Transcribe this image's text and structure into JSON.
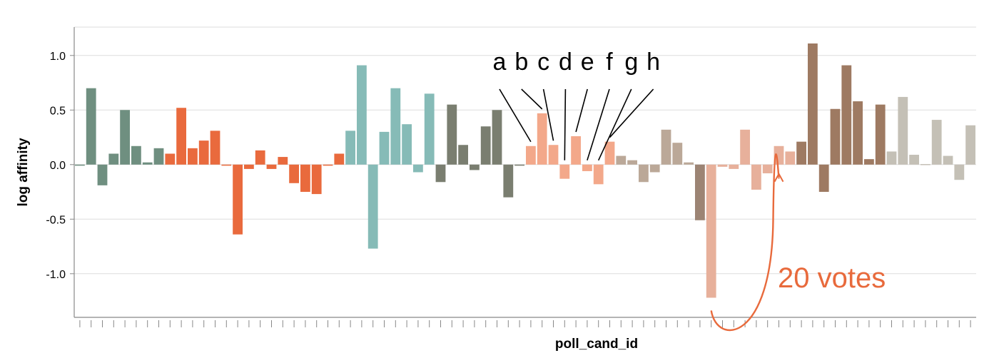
{
  "chart_data": {
    "type": "bar",
    "xlabel": "poll_cand_id",
    "ylabel": "log affinity",
    "ylim": [
      -1.4,
      1.26
    ],
    "yticks": [
      1.0,
      0.5,
      0.0,
      -0.5,
      -1.0
    ],
    "ytick_labels": [
      "1.0",
      "0.5",
      "0.0",
      "-0.5",
      "-1.0"
    ],
    "x_tick_labels_shown": false,
    "grid": true,
    "bars": [
      {
        "value": -0.01,
        "color": "#6f8f80"
      },
      {
        "value": 0.7,
        "color": "#6f8f80"
      },
      {
        "value": -0.19,
        "color": "#6f8f80"
      },
      {
        "value": 0.1,
        "color": "#6f8f80"
      },
      {
        "value": 0.5,
        "color": "#6f8f80"
      },
      {
        "value": 0.17,
        "color": "#6f8f80"
      },
      {
        "value": 0.02,
        "color": "#6f8f80"
      },
      {
        "value": 0.15,
        "color": "#6f8f80"
      },
      {
        "value": 0.1,
        "color": "#e96a3d"
      },
      {
        "value": 0.52,
        "color": "#e96a3d"
      },
      {
        "value": 0.15,
        "color": "#e96a3d"
      },
      {
        "value": 0.22,
        "color": "#e96a3d"
      },
      {
        "value": 0.31,
        "color": "#e96a3d"
      },
      {
        "value": -0.01,
        "color": "#e96a3d"
      },
      {
        "value": -0.64,
        "color": "#e96a3d"
      },
      {
        "value": -0.04,
        "color": "#e96a3d"
      },
      {
        "value": 0.13,
        "color": "#e96a3d"
      },
      {
        "value": -0.04,
        "color": "#e96a3d"
      },
      {
        "value": 0.07,
        "color": "#e96a3d"
      },
      {
        "value": -0.17,
        "color": "#e96a3d"
      },
      {
        "value": -0.25,
        "color": "#e96a3d"
      },
      {
        "value": -0.27,
        "color": "#e96a3d"
      },
      {
        "value": -0.01,
        "color": "#e96a3d"
      },
      {
        "value": 0.1,
        "color": "#e96a3d"
      },
      {
        "value": 0.31,
        "color": "#86bbb7"
      },
      {
        "value": 0.91,
        "color": "#86bbb7"
      },
      {
        "value": -0.77,
        "color": "#86bbb7"
      },
      {
        "value": 0.3,
        "color": "#86bbb7"
      },
      {
        "value": 0.7,
        "color": "#86bbb7"
      },
      {
        "value": 0.37,
        "color": "#86bbb7"
      },
      {
        "value": -0.07,
        "color": "#86bbb7"
      },
      {
        "value": 0.65,
        "color": "#86bbb7"
      },
      {
        "value": -0.16,
        "color": "#7a7e70"
      },
      {
        "value": 0.55,
        "color": "#7a7e70"
      },
      {
        "value": 0.18,
        "color": "#7a7e70"
      },
      {
        "value": -0.05,
        "color": "#7a7e70"
      },
      {
        "value": 0.35,
        "color": "#7a7e70"
      },
      {
        "value": 0.5,
        "color": "#7a7e70"
      },
      {
        "value": -0.3,
        "color": "#7a7e70"
      },
      {
        "value": -0.01,
        "color": "#7a7e70"
      },
      {
        "value": 0.17,
        "color": "#f3a88a"
      },
      {
        "value": 0.47,
        "color": "#f3a88a"
      },
      {
        "value": 0.18,
        "color": "#f3a88a"
      },
      {
        "value": -0.13,
        "color": "#f3a88a"
      },
      {
        "value": 0.26,
        "color": "#f3a88a"
      },
      {
        "value": -0.06,
        "color": "#f3a88a"
      },
      {
        "value": -0.18,
        "color": "#f3a88a"
      },
      {
        "value": 0.21,
        "color": "#f3a88a"
      },
      {
        "value": 0.08,
        "color": "#bba898"
      },
      {
        "value": 0.04,
        "color": "#bba898"
      },
      {
        "value": -0.16,
        "color": "#bba898"
      },
      {
        "value": -0.07,
        "color": "#bba898"
      },
      {
        "value": 0.32,
        "color": "#bba898"
      },
      {
        "value": 0.2,
        "color": "#bba898"
      },
      {
        "value": 0.02,
        "color": "#bba898"
      },
      {
        "value": -0.51,
        "color": "#9c8474"
      },
      {
        "value": -1.22,
        "color": "#e7b09b"
      },
      {
        "value": -0.02,
        "color": "#e7b09b"
      },
      {
        "value": -0.04,
        "color": "#e7b09b"
      },
      {
        "value": 0.32,
        "color": "#e7b09b"
      },
      {
        "value": -0.23,
        "color": "#e7b09b"
      },
      {
        "value": -0.08,
        "color": "#e7b09b"
      },
      {
        "value": 0.17,
        "color": "#e7b09b"
      },
      {
        "value": 0.12,
        "color": "#e7b09b"
      },
      {
        "value": 0.21,
        "color": "#9e7a62"
      },
      {
        "value": 1.11,
        "color": "#9e7a62"
      },
      {
        "value": -0.25,
        "color": "#9e7a62"
      },
      {
        "value": 0.51,
        "color": "#9e7a62"
      },
      {
        "value": 0.91,
        "color": "#9e7a62"
      },
      {
        "value": 0.58,
        "color": "#9e7a62"
      },
      {
        "value": 0.05,
        "color": "#9e7a62"
      },
      {
        "value": 0.55,
        "color": "#9e7a62"
      },
      {
        "value": 0.12,
        "color": "#c4c0b6"
      },
      {
        "value": 0.62,
        "color": "#c4c0b6"
      },
      {
        "value": 0.09,
        "color": "#c4c0b6"
      },
      {
        "value": 0.0,
        "color": "#c4c0b6"
      },
      {
        "value": 0.41,
        "color": "#c4c0b6"
      },
      {
        "value": 0.08,
        "color": "#c4c0b6"
      },
      {
        "value": -0.14,
        "color": "#c4c0b6"
      },
      {
        "value": 0.36,
        "color": "#c4c0b6"
      }
    ],
    "letter_annotations": [
      {
        "label": "a",
        "bar_index": 40
      },
      {
        "label": "b",
        "bar_index": 41
      },
      {
        "label": "c",
        "bar_index": 42
      },
      {
        "label": "d",
        "bar_index": 43
      },
      {
        "label": "e",
        "bar_index": 44
      },
      {
        "label": "f",
        "bar_index": 45
      },
      {
        "label": "g",
        "bar_index": 46
      },
      {
        "label": "h",
        "bar_index": 47
      }
    ],
    "votes_annotation": {
      "text": "20 votes",
      "from_bar_index": 56,
      "to_bar_index": 62,
      "color": "#e86a3c"
    }
  }
}
